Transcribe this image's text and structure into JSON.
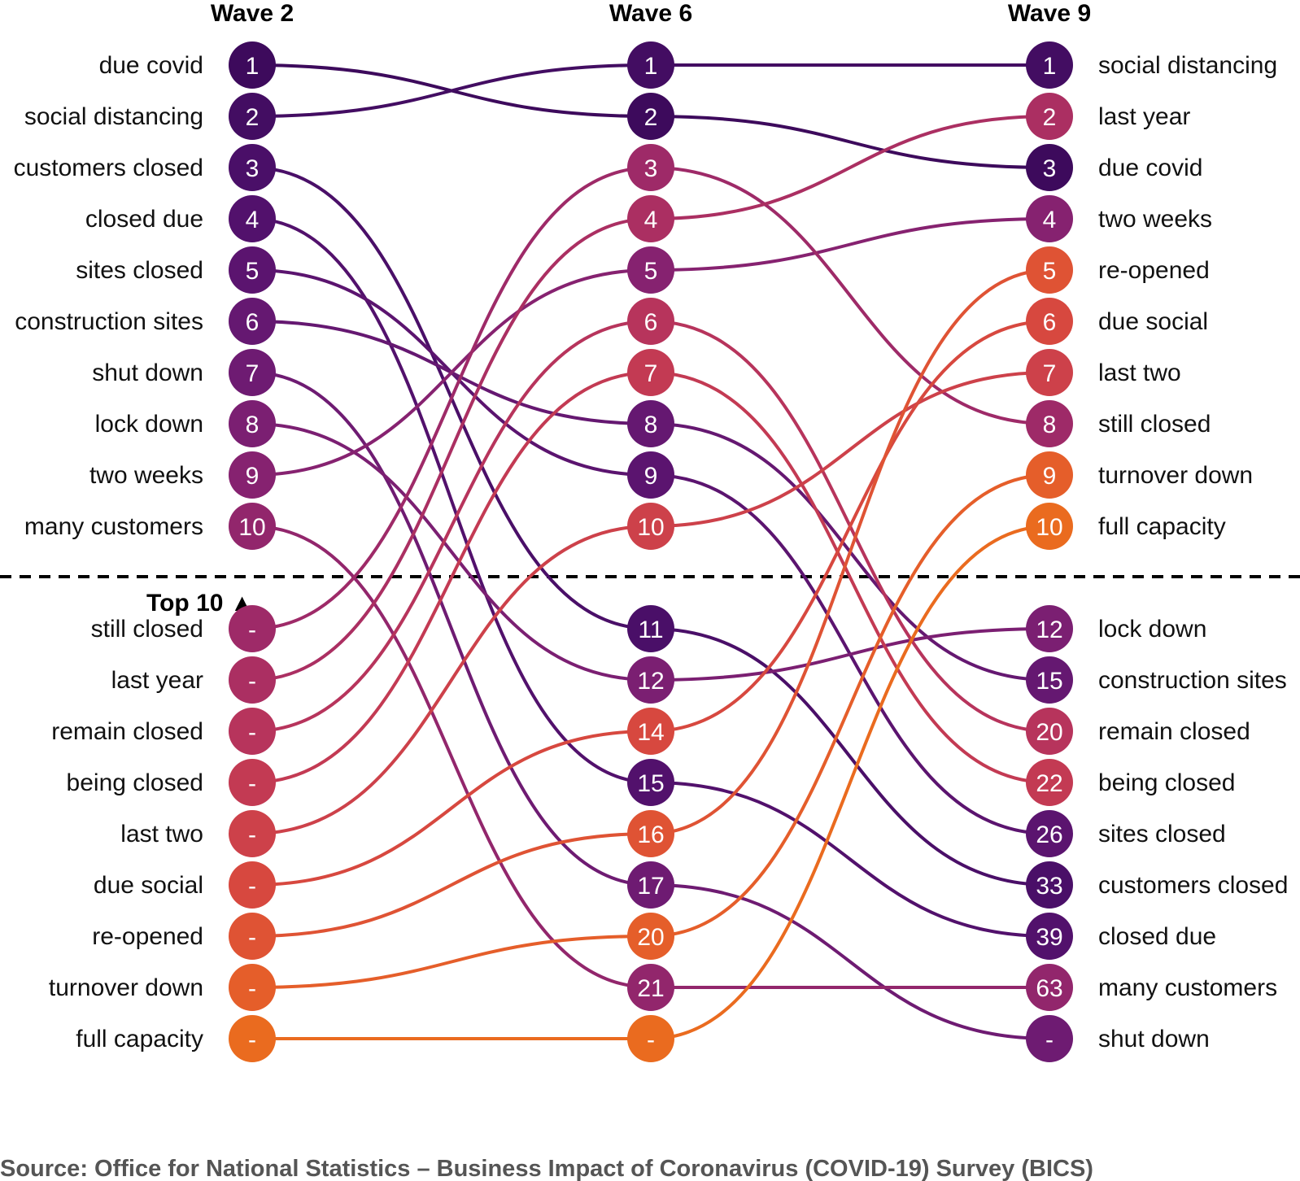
{
  "chart_data": {
    "type": "bump",
    "waves": [
      "Wave 2",
      "Wave 6",
      "Wave 9"
    ],
    "top_label": "Top 10 ▲",
    "source": "Source: Office for National Statistics – Business Impact of Coronavirus (COVID-19) Survey (BICS)",
    "terms": [
      {
        "term": "due covid",
        "ranks": [
          1,
          2,
          3
        ],
        "color": "#3d0a5c"
      },
      {
        "term": "social distancing",
        "ranks": [
          2,
          1,
          1
        ],
        "color": "#430d62"
      },
      {
        "term": "customers closed",
        "ranks": [
          3,
          11,
          33
        ],
        "color": "#4a0f68"
      },
      {
        "term": "closed due",
        "ranks": [
          4,
          15,
          39
        ],
        "color": "#52116c"
      },
      {
        "term": "sites closed",
        "ranks": [
          5,
          9,
          26
        ],
        "color": "#5b146f"
      },
      {
        "term": "construction sites",
        "ranks": [
          6,
          8,
          15
        ],
        "color": "#651871"
      },
      {
        "term": "shut down",
        "ranks": [
          7,
          17,
          null
        ],
        "color": "#6e1b72"
      },
      {
        "term": "lock down",
        "ranks": [
          8,
          12,
          12
        ],
        "color": "#7b1f72"
      },
      {
        "term": "two weeks",
        "ranks": [
          9,
          5,
          4
        ],
        "color": "#862270"
      },
      {
        "term": "many customers",
        "ranks": [
          10,
          21,
          63
        ],
        "color": "#92266c"
      },
      {
        "term": "still closed",
        "ranks": [
          null,
          3,
          8
        ],
        "color": "#9e2a68"
      },
      {
        "term": "last year",
        "ranks": [
          null,
          4,
          2
        ],
        "color": "#ab2f62"
      },
      {
        "term": "remain closed",
        "ranks": [
          null,
          6,
          20
        ],
        "color": "#b7345c"
      },
      {
        "term": "being closed",
        "ranks": [
          null,
          7,
          22
        ],
        "color": "#c33a53"
      },
      {
        "term": "last two",
        "ranks": [
          null,
          10,
          7
        ],
        "color": "#cd414a"
      },
      {
        "term": "due social",
        "ranks": [
          null,
          14,
          6
        ],
        "color": "#d7483f"
      },
      {
        "term": "re-opened",
        "ranks": [
          null,
          16,
          5
        ],
        "color": "#df5334"
      },
      {
        "term": "turnover down",
        "ranks": [
          null,
          20,
          9
        ],
        "color": "#e55e2a"
      },
      {
        "term": "full capacity",
        "ranks": [
          null,
          null,
          10
        ],
        "color": "#ea6b1f"
      }
    ],
    "columns": [
      {
        "wave": "Wave 2",
        "rows": [
          {
            "term": "due covid",
            "rank": "1"
          },
          {
            "term": "social distancing",
            "rank": "2"
          },
          {
            "term": "customers closed",
            "rank": "3"
          },
          {
            "term": "closed due",
            "rank": "4"
          },
          {
            "term": "sites closed",
            "rank": "5"
          },
          {
            "term": "construction sites",
            "rank": "6"
          },
          {
            "term": "shut down",
            "rank": "7"
          },
          {
            "term": "lock down",
            "rank": "8"
          },
          {
            "term": "two weeks",
            "rank": "9"
          },
          {
            "term": "many customers",
            "rank": "10"
          },
          {
            "term": "still closed",
            "rank": "-"
          },
          {
            "term": "last year",
            "rank": "-"
          },
          {
            "term": "remain closed",
            "rank": "-"
          },
          {
            "term": "being closed",
            "rank": "-"
          },
          {
            "term": "last two",
            "rank": "-"
          },
          {
            "term": "due social",
            "rank": "-"
          },
          {
            "term": "re-opened",
            "rank": "-"
          },
          {
            "term": "turnover down",
            "rank": "-"
          },
          {
            "term": "full capacity",
            "rank": "-"
          }
        ]
      },
      {
        "wave": "Wave 6",
        "rows": [
          {
            "term": "social distancing",
            "rank": "1"
          },
          {
            "term": "due covid",
            "rank": "2"
          },
          {
            "term": "still closed",
            "rank": "3"
          },
          {
            "term": "last year",
            "rank": "4"
          },
          {
            "term": "two weeks",
            "rank": "5"
          },
          {
            "term": "remain closed",
            "rank": "6"
          },
          {
            "term": "being closed",
            "rank": "7"
          },
          {
            "term": "construction sites",
            "rank": "8"
          },
          {
            "term": "sites closed",
            "rank": "9"
          },
          {
            "term": "last two",
            "rank": "10"
          },
          {
            "term": "customers closed",
            "rank": "11"
          },
          {
            "term": "lock down",
            "rank": "12"
          },
          {
            "term": "due social",
            "rank": "14"
          },
          {
            "term": "closed due",
            "rank": "15"
          },
          {
            "term": "re-opened",
            "rank": "16"
          },
          {
            "term": "shut down",
            "rank": "17"
          },
          {
            "term": "turnover down",
            "rank": "20"
          },
          {
            "term": "many customers",
            "rank": "21"
          },
          {
            "term": "full capacity",
            "rank": "-"
          }
        ]
      },
      {
        "wave": "Wave 9",
        "rows": [
          {
            "term": "social distancing",
            "rank": "1"
          },
          {
            "term": "last year",
            "rank": "2"
          },
          {
            "term": "due covid",
            "rank": "3"
          },
          {
            "term": "two weeks",
            "rank": "4"
          },
          {
            "term": "re-opened",
            "rank": "5"
          },
          {
            "term": "due social",
            "rank": "6"
          },
          {
            "term": "last two",
            "rank": "7"
          },
          {
            "term": "still closed",
            "rank": "8"
          },
          {
            "term": "turnover down",
            "rank": "9"
          },
          {
            "term": "full capacity",
            "rank": "10"
          },
          {
            "term": "lock down",
            "rank": "12"
          },
          {
            "term": "construction sites",
            "rank": "15"
          },
          {
            "term": "remain closed",
            "rank": "20"
          },
          {
            "term": "being closed",
            "rank": "22"
          },
          {
            "term": "sites closed",
            "rank": "26"
          },
          {
            "term": "customers closed",
            "rank": "33"
          },
          {
            "term": "closed due",
            "rank": "39"
          },
          {
            "term": "many customers",
            "rank": "63"
          },
          {
            "term": "shut down",
            "rank": "-"
          }
        ]
      }
    ]
  }
}
